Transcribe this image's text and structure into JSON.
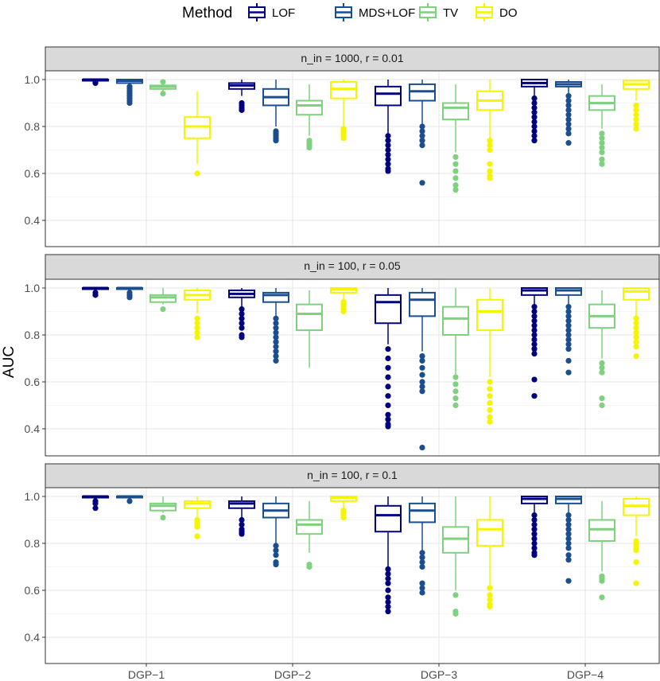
{
  "chart_data": {
    "type": "boxplot",
    "ylabel": "AUC",
    "xlabel": "",
    "ylim": [
      0.3,
      1.03
    ],
    "yticks": [
      "0.4",
      "0.6",
      "0.8",
      "1.0"
    ],
    "ytick_values": [
      0.4,
      0.6,
      0.8,
      1.0
    ],
    "legend": {
      "title": "Method",
      "position": "top",
      "entries": [
        {
          "name": "LOF",
          "color": "#00007f"
        },
        {
          "name": "MDS+LOF",
          "color": "#1a4e8e"
        },
        {
          "name": "TV",
          "color": "#7fd17f"
        },
        {
          "name": "DO",
          "color": "#f5f500"
        }
      ]
    },
    "categories": [
      "DGP−1",
      "DGP−2",
      "DGP−3",
      "DGP−4"
    ],
    "panels": [
      {
        "strip": "n_in = 1000,  r = 0.01",
        "boxes": [
          [
            {
              "q1": 0.995,
              "median": 1.0,
              "q3": 1.0,
              "lo": 0.99,
              "hi": 1.0,
              "outliers": [
                0.99,
                0.985
              ]
            },
            {
              "q1": 0.985,
              "median": 0.995,
              "q3": 1.0,
              "lo": 0.975,
              "hi": 1.0,
              "outliers": [
                0.97,
                0.96,
                0.95,
                0.94,
                0.93,
                0.92,
                0.91,
                0.9
              ]
            },
            {
              "q1": 0.96,
              "median": 0.97,
              "q3": 0.975,
              "lo": 0.95,
              "hi": 0.99,
              "outliers": [
                0.94,
                0.99
              ]
            },
            {
              "q1": 0.75,
              "median": 0.8,
              "q3": 0.84,
              "lo": 0.64,
              "hi": 0.95,
              "outliers": [
                0.6
              ]
            }
          ],
          [
            {
              "q1": 0.96,
              "median": 0.975,
              "q3": 0.985,
              "lo": 0.93,
              "hi": 1.0,
              "outliers": [
                0.9,
                0.89,
                0.88,
                0.87
              ]
            },
            {
              "q1": 0.89,
              "median": 0.925,
              "q3": 0.96,
              "lo": 0.8,
              "hi": 1.0,
              "outliers": [
                0.78,
                0.77,
                0.76,
                0.75,
                0.74
              ]
            },
            {
              "q1": 0.85,
              "median": 0.89,
              "q3": 0.91,
              "lo": 0.76,
              "hi": 0.98,
              "outliers": [
                0.74,
                0.73,
                0.72,
                0.71
              ]
            },
            {
              "q1": 0.92,
              "median": 0.96,
              "q3": 0.99,
              "lo": 0.8,
              "hi": 1.0,
              "outliers": [
                0.79,
                0.78,
                0.77,
                0.76,
                0.75
              ]
            }
          ],
          [
            {
              "q1": 0.89,
              "median": 0.94,
              "q3": 0.97,
              "lo": 0.77,
              "hi": 1.0,
              "outliers": [
                0.76,
                0.74,
                0.72,
                0.7,
                0.68,
                0.66,
                0.64,
                0.62,
                0.61
              ]
            },
            {
              "q1": 0.91,
              "median": 0.95,
              "q3": 0.98,
              "lo": 0.81,
              "hi": 1.0,
              "outliers": [
                0.8,
                0.78,
                0.76,
                0.74,
                0.72,
                0.56
              ]
            },
            {
              "q1": 0.83,
              "median": 0.88,
              "q3": 0.9,
              "lo": 0.69,
              "hi": 0.98,
              "outliers": [
                0.67,
                0.64,
                0.61,
                0.58,
                0.55,
                0.53
              ]
            },
            {
              "q1": 0.87,
              "median": 0.91,
              "q3": 0.95,
              "lo": 0.75,
              "hi": 1.0,
              "outliers": [
                0.74,
                0.72,
                0.7,
                0.64,
                0.61,
                0.59,
                0.58
              ]
            }
          ],
          [
            {
              "q1": 0.97,
              "median": 0.985,
              "q3": 1.0,
              "lo": 0.93,
              "hi": 1.0,
              "outliers": [
                0.92,
                0.9,
                0.88,
                0.86,
                0.84,
                0.82,
                0.8,
                0.78,
                0.76,
                0.74
              ]
            },
            {
              "q1": 0.97,
              "median": 0.98,
              "q3": 0.99,
              "lo": 0.94,
              "hi": 1.0,
              "outliers": [
                0.93,
                0.91,
                0.89,
                0.87,
                0.85,
                0.83,
                0.81,
                0.79,
                0.77,
                0.73
              ]
            },
            {
              "q1": 0.87,
              "median": 0.9,
              "q3": 0.93,
              "lo": 0.79,
              "hi": 0.98,
              "outliers": [
                0.77,
                0.75,
                0.73,
                0.71,
                0.69,
                0.66,
                0.64
              ]
            },
            {
              "q1": 0.96,
              "median": 0.98,
              "q3": 0.995,
              "lo": 0.91,
              "hi": 1.0,
              "outliers": [
                0.89,
                0.87,
                0.85,
                0.83,
                0.81,
                0.79
              ]
            }
          ]
        ]
      },
      {
        "strip": "n_in = 100,  r = 0.05",
        "boxes": [
          [
            {
              "q1": 0.995,
              "median": 1.0,
              "q3": 1.0,
              "lo": 0.985,
              "hi": 1.0,
              "outliers": [
                0.98,
                0.97
              ]
            },
            {
              "q1": 0.995,
              "median": 1.0,
              "q3": 1.0,
              "lo": 0.985,
              "hi": 1.0,
              "outliers": [
                0.98,
                0.97,
                0.96
              ]
            },
            {
              "q1": 0.94,
              "median": 0.96,
              "q3": 0.97,
              "lo": 0.93,
              "hi": 1.0,
              "outliers": [
                0.91
              ]
            },
            {
              "q1": 0.95,
              "median": 0.97,
              "q3": 0.99,
              "lo": 0.89,
              "hi": 1.0,
              "outliers": [
                0.87,
                0.85,
                0.83,
                0.81,
                0.79
              ]
            }
          ],
          [
            {
              "q1": 0.96,
              "median": 0.975,
              "q3": 0.99,
              "lo": 0.92,
              "hi": 1.0,
              "outliers": [
                0.91,
                0.89,
                0.87,
                0.85,
                0.83,
                0.8,
                0.79
              ]
            },
            {
              "q1": 0.94,
              "median": 0.97,
              "q3": 0.98,
              "lo": 0.88,
              "hi": 1.0,
              "outliers": [
                0.87,
                0.85,
                0.83,
                0.81,
                0.79,
                0.77,
                0.75,
                0.73,
                0.71,
                0.69
              ]
            },
            {
              "q1": 0.82,
              "median": 0.89,
              "q3": 0.93,
              "lo": 0.66,
              "hi": 0.99,
              "outliers": []
            },
            {
              "q1": 0.98,
              "median": 0.995,
              "q3": 1.0,
              "lo": 0.95,
              "hi": 1.0,
              "outliers": [
                0.94,
                0.93,
                0.92,
                0.91,
                0.9
              ]
            }
          ],
          [
            {
              "q1": 0.85,
              "median": 0.94,
              "q3": 0.97,
              "lo": 0.76,
              "hi": 1.0,
              "outliers": [
                0.74,
                0.7,
                0.66,
                0.62,
                0.58,
                0.54,
                0.5,
                0.46,
                0.44,
                0.42,
                0.41
              ]
            },
            {
              "q1": 0.88,
              "median": 0.95,
              "q3": 0.98,
              "lo": 0.73,
              "hi": 1.0,
              "outliers": [
                0.71,
                0.69,
                0.66,
                0.63,
                0.6,
                0.58,
                0.56,
                0.32
              ]
            },
            {
              "q1": 0.8,
              "median": 0.87,
              "q3": 0.92,
              "lo": 0.63,
              "hi": 1.0,
              "outliers": [
                0.62,
                0.59,
                0.56,
                0.53,
                0.5
              ]
            },
            {
              "q1": 0.82,
              "median": 0.9,
              "q3": 0.95,
              "lo": 0.62,
              "hi": 1.0,
              "outliers": [
                0.6,
                0.57,
                0.54,
                0.51,
                0.48,
                0.45,
                0.43
              ]
            }
          ],
          [
            {
              "q1": 0.97,
              "median": 0.99,
              "q3": 1.0,
              "lo": 0.93,
              "hi": 1.0,
              "outliers": [
                0.92,
                0.9,
                0.88,
                0.86,
                0.84,
                0.82,
                0.8,
                0.78,
                0.76,
                0.74,
                0.72,
                0.61,
                0.54
              ]
            },
            {
              "q1": 0.97,
              "median": 0.99,
              "q3": 1.0,
              "lo": 0.93,
              "hi": 1.0,
              "outliers": [
                0.92,
                0.9,
                0.88,
                0.86,
                0.84,
                0.82,
                0.8,
                0.78,
                0.76,
                0.74,
                0.69,
                0.64
              ]
            },
            {
              "q1": 0.83,
              "median": 0.88,
              "q3": 0.93,
              "lo": 0.7,
              "hi": 0.99,
              "outliers": [
                0.68,
                0.66,
                0.64,
                0.53,
                0.5
              ]
            },
            {
              "q1": 0.95,
              "median": 0.985,
              "q3": 1.0,
              "lo": 0.88,
              "hi": 1.0,
              "outliers": [
                0.87,
                0.85,
                0.83,
                0.81,
                0.79,
                0.77,
                0.75,
                0.71
              ]
            }
          ]
        ]
      },
      {
        "strip": "n_in = 100,  r = 0.1",
        "boxes": [
          [
            {
              "q1": 0.995,
              "median": 1.0,
              "q3": 1.0,
              "lo": 0.985,
              "hi": 1.0,
              "outliers": [
                0.98,
                0.97,
                0.95
              ]
            },
            {
              "q1": 0.995,
              "median": 1.0,
              "q3": 1.0,
              "lo": 0.985,
              "hi": 1.0,
              "outliers": [
                0.98
              ]
            },
            {
              "q1": 0.94,
              "median": 0.96,
              "q3": 0.97,
              "lo": 0.93,
              "hi": 1.0,
              "outliers": [
                0.91
              ]
            },
            {
              "q1": 0.95,
              "median": 0.97,
              "q3": 0.98,
              "lo": 0.91,
              "hi": 1.0,
              "outliers": [
                0.9,
                0.89,
                0.88,
                0.87,
                0.83
              ]
            }
          ],
          [
            {
              "q1": 0.95,
              "median": 0.97,
              "q3": 0.98,
              "lo": 0.91,
              "hi": 1.0,
              "outliers": [
                0.9,
                0.88,
                0.86,
                0.85,
                0.84
              ]
            },
            {
              "q1": 0.91,
              "median": 0.94,
              "q3": 0.97,
              "lo": 0.8,
              "hi": 1.0,
              "outliers": [
                0.79,
                0.77,
                0.75,
                0.72,
                0.71
              ]
            },
            {
              "q1": 0.84,
              "median": 0.88,
              "q3": 0.9,
              "lo": 0.76,
              "hi": 0.98,
              "outliers": [
                0.71,
                0.7
              ]
            },
            {
              "q1": 0.98,
              "median": 0.995,
              "q3": 1.0,
              "lo": 0.95,
              "hi": 1.0,
              "outliers": [
                0.94,
                0.93,
                0.92,
                0.91
              ]
            }
          ],
          [
            {
              "q1": 0.85,
              "median": 0.92,
              "q3": 0.96,
              "lo": 0.7,
              "hi": 1.0,
              "outliers": [
                0.69,
                0.67,
                0.65,
                0.63,
                0.6,
                0.57,
                0.55,
                0.53,
                0.51
              ]
            },
            {
              "q1": 0.89,
              "median": 0.94,
              "q3": 0.97,
              "lo": 0.77,
              "hi": 1.0,
              "outliers": [
                0.76,
                0.74,
                0.72,
                0.7,
                0.63,
                0.61,
                0.59
              ]
            },
            {
              "q1": 0.76,
              "median": 0.82,
              "q3": 0.87,
              "lo": 0.6,
              "hi": 1.0,
              "outliers": [
                0.58,
                0.51,
                0.5
              ]
            },
            {
              "q1": 0.79,
              "median": 0.86,
              "q3": 0.9,
              "lo": 0.62,
              "hi": 1.0,
              "outliers": [
                0.61,
                0.58,
                0.56,
                0.54,
                0.53
              ]
            }
          ],
          [
            {
              "q1": 0.97,
              "median": 0.99,
              "q3": 1.0,
              "lo": 0.93,
              "hi": 1.0,
              "outliers": [
                0.92,
                0.9,
                0.88,
                0.86,
                0.84,
                0.82,
                0.8,
                0.78,
                0.76,
                0.75
              ]
            },
            {
              "q1": 0.97,
              "median": 0.99,
              "q3": 1.0,
              "lo": 0.93,
              "hi": 1.0,
              "outliers": [
                0.92,
                0.9,
                0.88,
                0.86,
                0.84,
                0.82,
                0.8,
                0.78,
                0.75,
                0.73,
                0.64
              ]
            },
            {
              "q1": 0.81,
              "median": 0.86,
              "q3": 0.9,
              "lo": 0.68,
              "hi": 0.98,
              "outliers": [
                0.66,
                0.65,
                0.64,
                0.57
              ]
            },
            {
              "q1": 0.92,
              "median": 0.96,
              "q3": 0.99,
              "lo": 0.83,
              "hi": 1.0,
              "outliers": [
                0.81,
                0.8,
                0.79,
                0.78,
                0.77,
                0.72,
                0.63
              ]
            }
          ]
        ]
      }
    ]
  }
}
